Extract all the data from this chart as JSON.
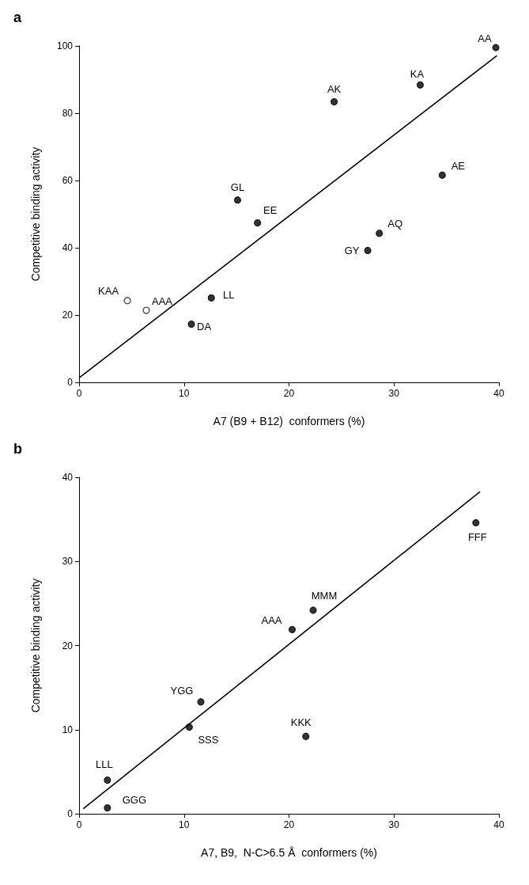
{
  "chart_data": [
    {
      "type": "scatter",
      "title": "a",
      "xlabel": "A7 (B9 + B12)  conformers (%)",
      "ylabel": "Competitive binding activity",
      "xlim": [
        0,
        40
      ],
      "xticks": [
        0,
        10,
        20,
        30,
        40
      ],
      "ylim": [
        0,
        100
      ],
      "yticks": [
        0,
        20,
        40,
        60,
        80,
        100
      ],
      "grid": false,
      "marker": "circle",
      "series": [
        {
          "color": "#000000",
          "x": [
            39.7,
            32.5,
            24.3,
            34.6,
            28.6,
            27.5,
            15.1,
            17.0,
            12.6,
            10.7
          ],
          "values": [
            99.5,
            88.4,
            83.4,
            61.6,
            44.3,
            39.2,
            54.2,
            47.4,
            25.1,
            17.3
          ]
        },
        {
          "color": "#ffffff",
          "x": [
            4.6,
            6.4
          ],
          "values": [
            24.3,
            21.4
          ]
        },
        {
          "type": "line",
          "color": "#000000",
          "marker": "none",
          "line_style": "solid",
          "x": [
            0,
            39.8
          ],
          "values": [
            1.3,
            97.1
          ]
        }
      ],
      "annotations": [
        {
          "text": "AA",
          "x": 39.7,
          "y": 99.5
        },
        {
          "text": "KA",
          "x": 32.5,
          "y": 88.4
        },
        {
          "text": "AK",
          "x": 24.3,
          "y": 83.4
        },
        {
          "text": "AE",
          "x": 34.6,
          "y": 61.6
        },
        {
          "text": "AQ",
          "x": 28.6,
          "y": 44.3
        },
        {
          "text": "GY",
          "x": 27.5,
          "y": 39.2
        },
        {
          "text": "GL",
          "x": 15.1,
          "y": 54.2
        },
        {
          "text": "EE",
          "x": 17.0,
          "y": 47.4
        },
        {
          "text": "LL",
          "x": 12.6,
          "y": 25.1
        },
        {
          "text": "DA",
          "x": 10.7,
          "y": 17.3
        },
        {
          "text": "KAA",
          "x": 4.6,
          "y": 24.3
        },
        {
          "text": "AAA",
          "x": 6.4,
          "y": 21.4
        }
      ]
    },
    {
      "type": "scatter",
      "title": "b",
      "xlabel": "A7, B9,  N-C>6.5 Å  conformers (%)",
      "ylabel": "Competitive binding activity",
      "xlim": [
        0,
        40
      ],
      "xticks": [
        0,
        10,
        20,
        30,
        40
      ],
      "ylim": [
        0,
        40
      ],
      "yticks": [
        0,
        10,
        20,
        30,
        40
      ],
      "grid": false,
      "marker": "circle",
      "series": [
        {
          "color": "#000000",
          "x": [
            37.8,
            22.3,
            20.3,
            11.6,
            10.5,
            21.6,
            2.7,
            2.7
          ],
          "values": [
            34.6,
            24.2,
            21.9,
            13.3,
            10.3,
            9.2,
            4.0,
            0.7
          ]
        },
        {
          "type": "line",
          "color": "#000000",
          "marker": "none",
          "line_style": "solid",
          "x": [
            0.4,
            38.2
          ],
          "values": [
            0.6,
            38.3
          ]
        }
      ],
      "annotations": [
        {
          "text": "FFF",
          "x": 37.8,
          "y": 34.6
        },
        {
          "text": "MMM",
          "x": 22.3,
          "y": 24.2
        },
        {
          "text": "AAA",
          "x": 20.3,
          "y": 21.9
        },
        {
          "text": "YGG",
          "x": 11.6,
          "y": 13.3
        },
        {
          "text": "SSS",
          "x": 10.5,
          "y": 10.3
        },
        {
          "text": "KKK",
          "x": 21.6,
          "y": 9.2
        },
        {
          "text": "LLL",
          "x": 2.7,
          "y": 4.0
        },
        {
          "text": "GGG",
          "x": 2.7,
          "y": 0.7
        }
      ]
    }
  ]
}
